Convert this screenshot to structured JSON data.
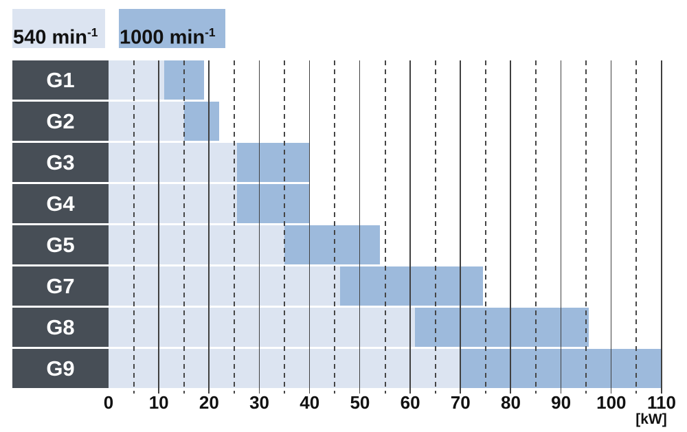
{
  "colors": {
    "background": "#ffffff",
    "bar_540": "#dce4f1",
    "bar_1000": "#9dbadc",
    "row_label_bg": "#474e56",
    "row_label_text": "#ffffff",
    "grid_solid": "#3f3f3f",
    "grid_dashed": "#454545",
    "text": "#111111"
  },
  "chart_data": {
    "type": "bar",
    "subtype": "horizontal-range-bars",
    "title": "",
    "xlabel": "[kW]",
    "unit": "kW",
    "xlim": [
      0,
      110
    ],
    "xticks": [
      0,
      10,
      20,
      30,
      40,
      50,
      60,
      70,
      80,
      90,
      100,
      110
    ],
    "grid": {
      "solid_step_kw": 10,
      "dashed_step_kw": 5,
      "gridlines_over_bars": true
    },
    "legend_position": "top-left",
    "legend": [
      {
        "label": "540 min",
        "exponent": "-1",
        "series": "540 min⁻¹",
        "color": "#dce4f1"
      },
      {
        "label": "1000 min",
        "exponent": "-1",
        "series": "1000 min⁻¹",
        "color": "#9dbadc"
      }
    ],
    "categories": [
      "G1",
      "G2",
      "G3",
      "G4",
      "G5",
      "G7",
      "G8",
      "G9"
    ],
    "rows": [
      {
        "label": "G1",
        "kw_540": [
          0,
          11
        ],
        "kw_1000": [
          11,
          19
        ]
      },
      {
        "label": "G2",
        "kw_540": [
          0,
          15
        ],
        "kw_1000": [
          15,
          22
        ]
      },
      {
        "label": "G3",
        "kw_540": [
          0,
          25.5
        ],
        "kw_1000": [
          25.5,
          40
        ]
      },
      {
        "label": "G4",
        "kw_540": [
          0,
          25.5
        ],
        "kw_1000": [
          25.5,
          40
        ]
      },
      {
        "label": "G5",
        "kw_540": [
          0,
          35
        ],
        "kw_1000": [
          35,
          54
        ]
      },
      {
        "label": "G7",
        "kw_540": [
          0,
          46
        ],
        "kw_1000": [
          46,
          74.5
        ]
      },
      {
        "label": "G8",
        "kw_540": [
          0,
          61
        ],
        "kw_1000": [
          61,
          95.5
        ]
      },
      {
        "label": "G9",
        "kw_540": [
          0,
          70
        ],
        "kw_1000": [
          70,
          110
        ]
      }
    ]
  }
}
